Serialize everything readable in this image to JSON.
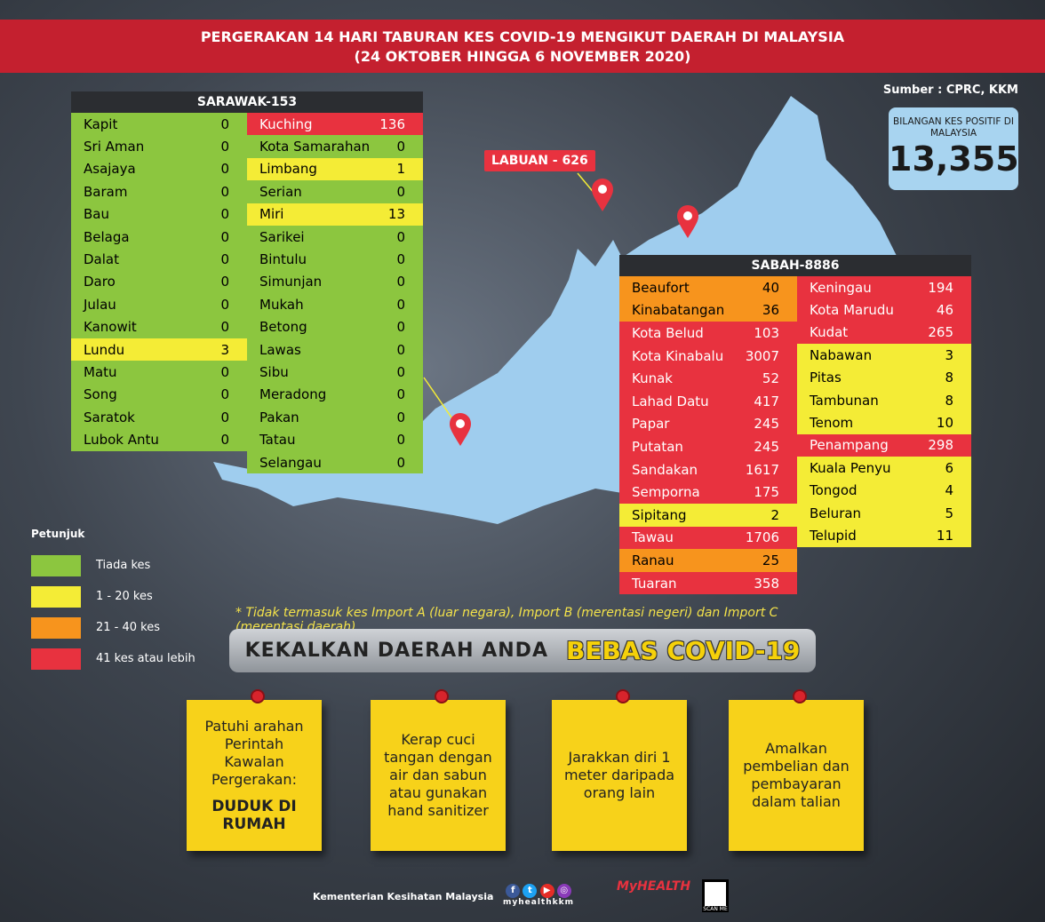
{
  "title": {
    "line1": "PERGERAKAN 14 HARI TABURAN KES COVID-19 MENGIKUT DAERAH DI MALAYSIA",
    "line2": "(24 OKTOBER HINGGA 6 NOVEMBER 2020)"
  },
  "source": "Sumber : CPRC, KKM",
  "total": {
    "label": "BILANGAN KES POSITIF DI MALAYSIA",
    "value": "13,355"
  },
  "colors": {
    "none": "#8cc63f",
    "low": "#f4ec36",
    "mid": "#f7941d",
    "high": "#e8323f"
  },
  "sarawak": {
    "title": "SARAWAK-153",
    "left": [
      [
        "Kapit",
        "0",
        "none"
      ],
      [
        "Sri Aman",
        "0",
        "none"
      ],
      [
        "Asajaya",
        "0",
        "none"
      ],
      [
        "Baram",
        "0",
        "none"
      ],
      [
        "Bau",
        "0",
        "none"
      ],
      [
        "Belaga",
        "0",
        "none"
      ],
      [
        "Dalat",
        "0",
        "none"
      ],
      [
        "Daro",
        "0",
        "none"
      ],
      [
        "Julau",
        "0",
        "none"
      ],
      [
        "Kanowit",
        "0",
        "none"
      ],
      [
        "Lundu",
        "3",
        "low"
      ],
      [
        "Matu",
        "0",
        "none"
      ],
      [
        "Song",
        "0",
        "none"
      ],
      [
        "Saratok",
        "0",
        "none"
      ],
      [
        "Lubok Antu",
        "0",
        "none"
      ]
    ],
    "right": [
      [
        "Kuching",
        "136",
        "high"
      ],
      [
        "Kota Samarahan",
        "0",
        "none"
      ],
      [
        "Limbang",
        "1",
        "low"
      ],
      [
        "Serian",
        "0",
        "none"
      ],
      [
        "Miri",
        "13",
        "low"
      ],
      [
        "Sarikei",
        "0",
        "none"
      ],
      [
        "Bintulu",
        "0",
        "none"
      ],
      [
        "Simunjan",
        "0",
        "none"
      ],
      [
        "Mukah",
        "0",
        "none"
      ],
      [
        "Betong",
        "0",
        "none"
      ],
      [
        "Lawas",
        "0",
        "none"
      ],
      [
        "Sibu",
        "0",
        "none"
      ],
      [
        "Meradong",
        "0",
        "none"
      ],
      [
        "Pakan",
        "0",
        "none"
      ],
      [
        "Tatau",
        "0",
        "none"
      ],
      [
        "Selangau",
        "0",
        "none"
      ]
    ]
  },
  "labuan": "LABUAN - 626",
  "sabah": {
    "title": "SABAH-8886",
    "left": [
      [
        "Beaufort",
        "40",
        "mid"
      ],
      [
        "Kinabatangan",
        "36",
        "mid"
      ],
      [
        "Kota Belud",
        "103",
        "high"
      ],
      [
        "Kota Kinabalu",
        "3007",
        "high"
      ],
      [
        "Kunak",
        "52",
        "high"
      ],
      [
        "Lahad Datu",
        "417",
        "high"
      ],
      [
        "Papar",
        "245",
        "high"
      ],
      [
        "Putatan",
        "245",
        "high"
      ],
      [
        "Sandakan",
        "1617",
        "high"
      ],
      [
        "Semporna",
        "175",
        "high"
      ],
      [
        "Sipitang",
        "2",
        "low"
      ],
      [
        "Tawau",
        "1706",
        "high"
      ],
      [
        "Ranau",
        "25",
        "mid"
      ],
      [
        "Tuaran",
        "358",
        "high"
      ]
    ],
    "right": [
      [
        "Keningau",
        "194",
        "high"
      ],
      [
        "Kota Marudu",
        "46",
        "high"
      ],
      [
        "Kudat",
        "265",
        "high"
      ],
      [
        "Nabawan",
        "3",
        "low"
      ],
      [
        "Pitas",
        "8",
        "low"
      ],
      [
        "Tambunan",
        "8",
        "low"
      ],
      [
        "Tenom",
        "10",
        "low"
      ],
      [
        "Penampang",
        "298",
        "high"
      ],
      [
        "Kuala Penyu",
        "6",
        "low"
      ],
      [
        "Tongod",
        "4",
        "low"
      ],
      [
        "Beluran",
        "5",
        "low"
      ],
      [
        "Telupid",
        "11",
        "low"
      ]
    ]
  },
  "legend": {
    "title": "Petunjuk",
    "items": [
      {
        "label": "Tiada kes",
        "level": "none"
      },
      {
        "label": "1 - 20 kes",
        "level": "low"
      },
      {
        "label": "21 - 40 kes",
        "level": "mid"
      },
      {
        "label": "41 kes atau lebih",
        "level": "high"
      }
    ]
  },
  "note": "* Tidak termasuk kes Import A (luar negara),  Import B (merentasi negeri) dan Import C (merentasi daerah)",
  "banner": {
    "part1": "KEKALKAN DAERAH ANDA",
    "part2": "BEBAS COVID-19"
  },
  "tips": [
    {
      "text": "Patuhi arahan Perintah Kawalan Pergerakan:",
      "bold": "DUDUK DI RUMAH"
    },
    {
      "text": "Kerap cuci tangan dengan air dan sabun atau gunakan hand sanitizer",
      "bold": ""
    },
    {
      "text": "Jarakkan diri 1 meter daripada orang lain",
      "bold": ""
    },
    {
      "text": "Amalkan pembelian dan pembayaran dalam talian",
      "bold": ""
    }
  ],
  "footer": {
    "ministry": "Kementerian Kesihatan Malaysia",
    "handle": "myhealthkkm",
    "scan": "SCAN ME"
  }
}
